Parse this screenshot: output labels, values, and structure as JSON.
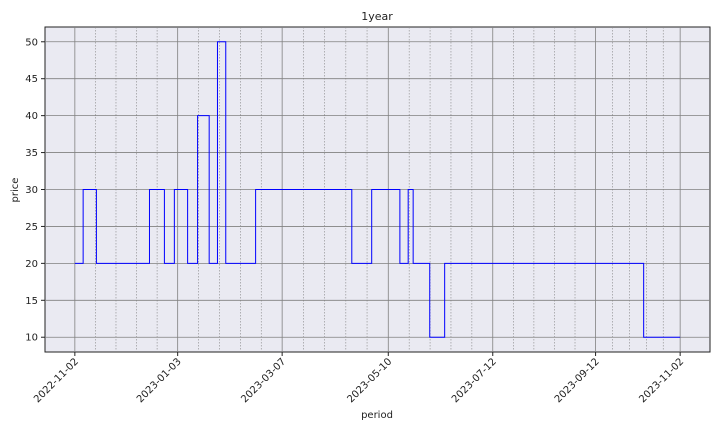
{
  "chart_data": {
    "type": "line",
    "title": "1year",
    "x_label": "period",
    "y_label": "price",
    "x": [
      "2022-11-02",
      "2022-11-07",
      "2022-11-15",
      "2022-12-17",
      "2022-12-26",
      "2023-01-01",
      "2023-01-09",
      "2023-01-15",
      "2023-01-22",
      "2023-01-27",
      "2023-02-01",
      "2023-02-19",
      "2023-04-18",
      "2023-04-30",
      "2023-05-17",
      "2023-05-22",
      "2023-05-25",
      "2023-06-04",
      "2023-06-13",
      "2023-10-11",
      "2023-11-02"
    ],
    "series": [
      {
        "name": "price",
        "color": "#0000ff",
        "values": [
          20,
          30,
          20,
          30,
          20,
          30,
          20,
          40,
          20,
          50,
          20,
          30,
          20,
          30,
          20,
          30,
          20,
          10,
          20,
          10,
          10
        ]
      }
    ],
    "step": "post",
    "xlim": [
      "2022-10-15",
      "2023-11-20"
    ],
    "xticks": [
      "2022-11-02",
      "2023-01-03",
      "2023-03-07",
      "2023-05-10",
      "2023-07-12",
      "2023-09-12",
      "2023-11-02"
    ],
    "ylim": [
      8,
      52
    ],
    "yticks": [
      10,
      15,
      20,
      25,
      30,
      35,
      40,
      45,
      50
    ],
    "grid": true,
    "minor_grid": true
  }
}
